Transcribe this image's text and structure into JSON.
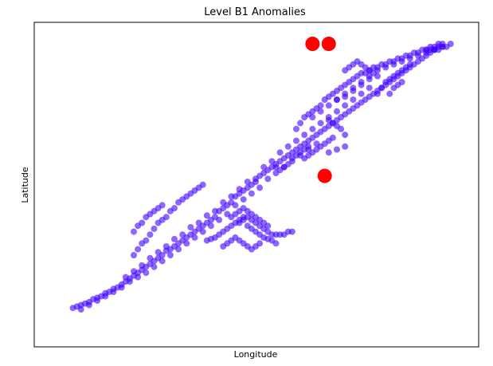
{
  "chart_data": {
    "type": "scatter",
    "title": "Level B1 Anomalies",
    "xlabel": "Longitude",
    "ylabel": "Latitude",
    "xlim": [
      0,
      100
    ],
    "ylim": [
      0,
      100
    ],
    "ticks_visible": false,
    "grid": false,
    "legend": "none",
    "series": [
      {
        "role": "normal",
        "color": "#3f00ff",
        "opacity": 0.6,
        "points": [
          [
            5,
            7
          ],
          [
            6,
            7.5
          ],
          [
            7,
            8
          ],
          [
            8,
            8.5
          ],
          [
            9,
            9
          ],
          [
            10,
            10
          ],
          [
            11,
            10.5
          ],
          [
            12,
            11
          ],
          [
            13,
            12
          ],
          [
            14,
            12.5
          ],
          [
            15,
            13.5
          ],
          [
            16,
            14
          ],
          [
            17,
            15
          ],
          [
            18,
            16
          ],
          [
            19,
            17
          ],
          [
            20,
            18
          ],
          [
            21,
            19
          ],
          [
            22,
            20
          ],
          [
            23,
            21
          ],
          [
            24,
            22
          ],
          [
            25,
            23
          ],
          [
            26,
            24
          ],
          [
            27,
            25
          ],
          [
            28,
            26.5
          ],
          [
            29,
            27
          ],
          [
            30,
            28
          ],
          [
            31,
            29
          ],
          [
            32,
            30
          ],
          [
            33,
            31
          ],
          [
            34,
            32
          ],
          [
            35,
            33
          ],
          [
            36,
            34
          ],
          [
            37,
            35
          ],
          [
            38,
            36
          ],
          [
            39,
            37
          ],
          [
            40,
            38
          ],
          [
            41,
            40
          ],
          [
            42,
            41
          ],
          [
            43,
            42
          ],
          [
            44,
            43
          ],
          [
            45,
            45
          ],
          [
            46,
            46
          ],
          [
            47,
            47
          ],
          [
            48,
            48
          ],
          [
            49,
            49
          ],
          [
            50,
            50
          ],
          [
            51,
            52
          ],
          [
            52,
            53
          ],
          [
            53,
            54
          ],
          [
            54,
            55
          ],
          [
            55,
            56
          ],
          [
            56,
            57
          ],
          [
            57,
            58
          ],
          [
            58,
            59
          ],
          [
            59,
            60
          ],
          [
            60,
            61
          ],
          [
            61,
            62
          ],
          [
            62,
            63
          ],
          [
            63,
            64
          ],
          [
            64,
            65
          ],
          [
            65,
            66
          ],
          [
            66,
            67
          ],
          [
            67,
            68
          ],
          [
            68,
            69
          ],
          [
            69,
            70
          ],
          [
            70,
            71
          ],
          [
            71,
            72
          ],
          [
            72,
            73
          ],
          [
            73,
            74
          ],
          [
            74,
            75
          ],
          [
            75,
            76
          ],
          [
            76,
            77
          ],
          [
            77,
            78
          ],
          [
            78,
            79
          ],
          [
            79,
            80
          ],
          [
            80,
            81
          ],
          [
            81,
            82
          ],
          [
            82,
            83
          ],
          [
            83,
            84
          ],
          [
            84,
            85
          ],
          [
            85,
            86
          ],
          [
            86,
            87
          ],
          [
            87,
            88
          ],
          [
            88,
            89
          ],
          [
            89,
            90
          ],
          [
            90,
            91
          ],
          [
            91,
            92
          ],
          [
            92,
            93
          ],
          [
            93,
            94
          ],
          [
            94,
            95
          ],
          [
            95,
            96
          ],
          [
            96,
            97
          ],
          [
            7,
            6.5
          ],
          [
            9,
            8
          ],
          [
            11,
            9.5
          ],
          [
            13,
            11
          ],
          [
            15,
            12.5
          ],
          [
            17,
            14
          ],
          [
            19,
            16
          ],
          [
            21,
            17.5
          ],
          [
            23,
            19
          ],
          [
            25,
            21
          ],
          [
            27,
            23
          ],
          [
            29,
            25
          ],
          [
            31,
            27
          ],
          [
            33,
            29
          ],
          [
            35,
            31
          ],
          [
            37,
            33
          ],
          [
            39,
            35
          ],
          [
            41,
            37
          ],
          [
            43,
            39
          ],
          [
            45,
            42
          ],
          [
            47,
            44
          ],
          [
            49,
            46
          ],
          [
            51,
            48
          ],
          [
            53,
            51
          ],
          [
            55,
            53
          ],
          [
            57,
            55
          ],
          [
            59,
            57
          ],
          [
            61,
            59
          ],
          [
            63,
            61
          ],
          [
            65,
            63
          ],
          [
            18,
            17.5
          ],
          [
            20,
            19.5
          ],
          [
            22,
            21.5
          ],
          [
            24,
            24
          ],
          [
            26,
            26
          ],
          [
            28,
            28
          ],
          [
            30,
            30.5
          ],
          [
            32,
            32
          ],
          [
            34,
            34.5
          ],
          [
            36,
            36
          ],
          [
            38,
            38.5
          ],
          [
            40,
            40
          ],
          [
            42,
            43
          ],
          [
            44,
            45
          ],
          [
            46,
            47.5
          ],
          [
            48,
            50
          ],
          [
            50,
            51
          ],
          [
            52,
            55
          ],
          [
            54,
            57
          ],
          [
            56,
            60
          ],
          [
            58,
            62
          ],
          [
            60,
            64
          ],
          [
            62,
            66
          ],
          [
            64,
            68
          ],
          [
            20,
            25
          ],
          [
            21,
            27
          ],
          [
            22,
            29
          ],
          [
            23,
            30
          ],
          [
            24,
            32
          ],
          [
            25,
            34
          ],
          [
            26,
            36
          ],
          [
            27,
            37
          ],
          [
            28,
            38
          ],
          [
            29,
            40
          ],
          [
            30,
            41
          ],
          [
            31,
            43
          ],
          [
            32,
            44
          ],
          [
            33,
            45
          ],
          [
            34,
            46
          ],
          [
            35,
            47
          ],
          [
            36,
            48
          ],
          [
            37,
            49
          ],
          [
            20,
            33
          ],
          [
            21,
            35
          ],
          [
            22,
            36
          ],
          [
            23,
            38
          ],
          [
            24,
            39
          ],
          [
            25,
            40
          ],
          [
            26,
            41
          ],
          [
            27,
            42
          ],
          [
            38,
            30
          ],
          [
            39,
            30.5
          ],
          [
            40,
            31
          ],
          [
            41,
            32
          ],
          [
            42,
            33
          ],
          [
            43,
            34
          ],
          [
            44,
            35
          ],
          [
            45,
            36
          ],
          [
            46,
            37
          ],
          [
            47,
            38
          ],
          [
            48,
            38
          ],
          [
            49,
            37
          ],
          [
            50,
            36
          ],
          [
            51,
            35
          ],
          [
            52,
            34
          ],
          [
            53,
            33
          ],
          [
            54,
            32
          ],
          [
            55,
            32
          ],
          [
            56,
            32
          ],
          [
            57,
            32
          ],
          [
            58,
            33
          ],
          [
            59,
            33
          ],
          [
            46,
            36
          ],
          [
            47,
            37
          ],
          [
            48,
            35
          ],
          [
            49,
            34
          ],
          [
            50,
            33
          ],
          [
            51,
            32
          ],
          [
            52,
            31
          ],
          [
            53,
            30.5
          ],
          [
            54,
            30
          ],
          [
            55,
            29
          ],
          [
            44,
            38
          ],
          [
            45,
            39
          ],
          [
            46,
            40
          ],
          [
            47,
            41
          ],
          [
            48,
            40
          ],
          [
            49,
            39
          ],
          [
            50,
            38
          ],
          [
            51,
            37
          ],
          [
            52,
            36
          ],
          [
            53,
            35
          ],
          [
            42,
            28
          ],
          [
            43,
            29
          ],
          [
            44,
            30
          ],
          [
            45,
            31
          ],
          [
            46,
            30
          ],
          [
            47,
            29
          ],
          [
            48,
            28
          ],
          [
            49,
            27
          ],
          [
            50,
            28
          ],
          [
            51,
            29
          ],
          [
            55,
            55
          ],
          [
            56,
            54
          ],
          [
            57,
            55
          ],
          [
            58,
            56
          ],
          [
            59,
            58
          ],
          [
            60,
            59
          ],
          [
            61,
            60
          ],
          [
            62,
            61
          ],
          [
            63,
            62
          ],
          [
            62,
            58
          ],
          [
            63,
            59
          ],
          [
            64,
            60
          ],
          [
            65,
            61
          ],
          [
            66,
            62
          ],
          [
            67,
            63
          ],
          [
            68,
            64
          ],
          [
            69,
            65
          ],
          [
            60,
            68
          ],
          [
            61,
            70
          ],
          [
            62,
            72
          ],
          [
            63,
            73
          ],
          [
            64,
            74
          ],
          [
            65,
            75
          ],
          [
            66,
            76
          ],
          [
            67,
            78
          ],
          [
            68,
            79
          ],
          [
            69,
            80
          ],
          [
            70,
            81
          ],
          [
            71,
            82
          ],
          [
            72,
            83
          ],
          [
            73,
            84
          ],
          [
            74,
            85
          ],
          [
            75,
            86
          ],
          [
            76,
            87
          ],
          [
            77,
            87
          ],
          [
            78,
            88
          ],
          [
            79,
            89
          ],
          [
            80,
            89
          ],
          [
            81,
            90
          ],
          [
            82,
            90
          ],
          [
            83,
            91
          ],
          [
            84,
            91
          ],
          [
            85,
            92
          ],
          [
            86,
            92
          ],
          [
            87,
            93
          ],
          [
            88,
            93
          ],
          [
            89,
            94
          ],
          [
            90,
            94
          ],
          [
            91,
            95
          ],
          [
            92,
            95
          ],
          [
            93,
            96
          ],
          [
            94,
            96
          ],
          [
            95,
            97
          ],
          [
            70,
            78
          ],
          [
            72,
            80
          ],
          [
            74,
            82
          ],
          [
            76,
            84
          ],
          [
            78,
            86
          ],
          [
            80,
            88
          ],
          [
            82,
            89
          ],
          [
            84,
            90
          ],
          [
            86,
            91
          ],
          [
            88,
            92
          ],
          [
            90,
            93
          ],
          [
            92,
            94
          ],
          [
            94,
            95
          ],
          [
            96,
            96
          ],
          [
            66,
            70
          ],
          [
            68,
            72
          ],
          [
            70,
            74
          ],
          [
            72,
            76
          ],
          [
            74,
            78
          ],
          [
            76,
            80
          ],
          [
            78,
            82
          ],
          [
            64,
            72
          ],
          [
            66,
            74
          ],
          [
            68,
            76
          ],
          [
            70,
            78
          ],
          [
            72,
            79
          ],
          [
            74,
            81
          ],
          [
            76,
            83
          ],
          [
            78,
            85
          ],
          [
            72,
            66
          ],
          [
            71,
            68
          ],
          [
            70,
            69
          ],
          [
            69,
            70
          ],
          [
            68,
            71
          ],
          [
            68,
            60
          ],
          [
            70,
            61
          ],
          [
            72,
            62
          ],
          [
            80,
            80
          ],
          [
            81,
            82
          ],
          [
            82,
            84
          ],
          [
            83,
            85
          ],
          [
            84,
            86
          ],
          [
            85,
            87
          ],
          [
            86,
            88
          ],
          [
            87,
            89
          ],
          [
            88,
            90
          ],
          [
            72,
            88
          ],
          [
            73,
            89
          ],
          [
            74,
            90
          ],
          [
            75,
            91
          ],
          [
            76,
            90
          ],
          [
            77,
            89
          ],
          [
            78,
            88
          ],
          [
            79,
            87
          ],
          [
            80,
            86
          ],
          [
            83,
            80
          ],
          [
            84,
            82
          ],
          [
            85,
            83
          ],
          [
            86,
            84
          ],
          [
            92,
            95
          ],
          [
            93,
            95
          ],
          [
            94,
            95
          ],
          [
            95,
            95
          ],
          [
            96,
            96
          ],
          [
            97,
            96
          ],
          [
            98,
            97
          ]
        ]
      },
      {
        "role": "anomaly",
        "color": "#ff0000",
        "opacity": 1,
        "points": [
          [
            64,
            97
          ],
          [
            68,
            97
          ],
          [
            67,
            52
          ]
        ]
      }
    ]
  }
}
